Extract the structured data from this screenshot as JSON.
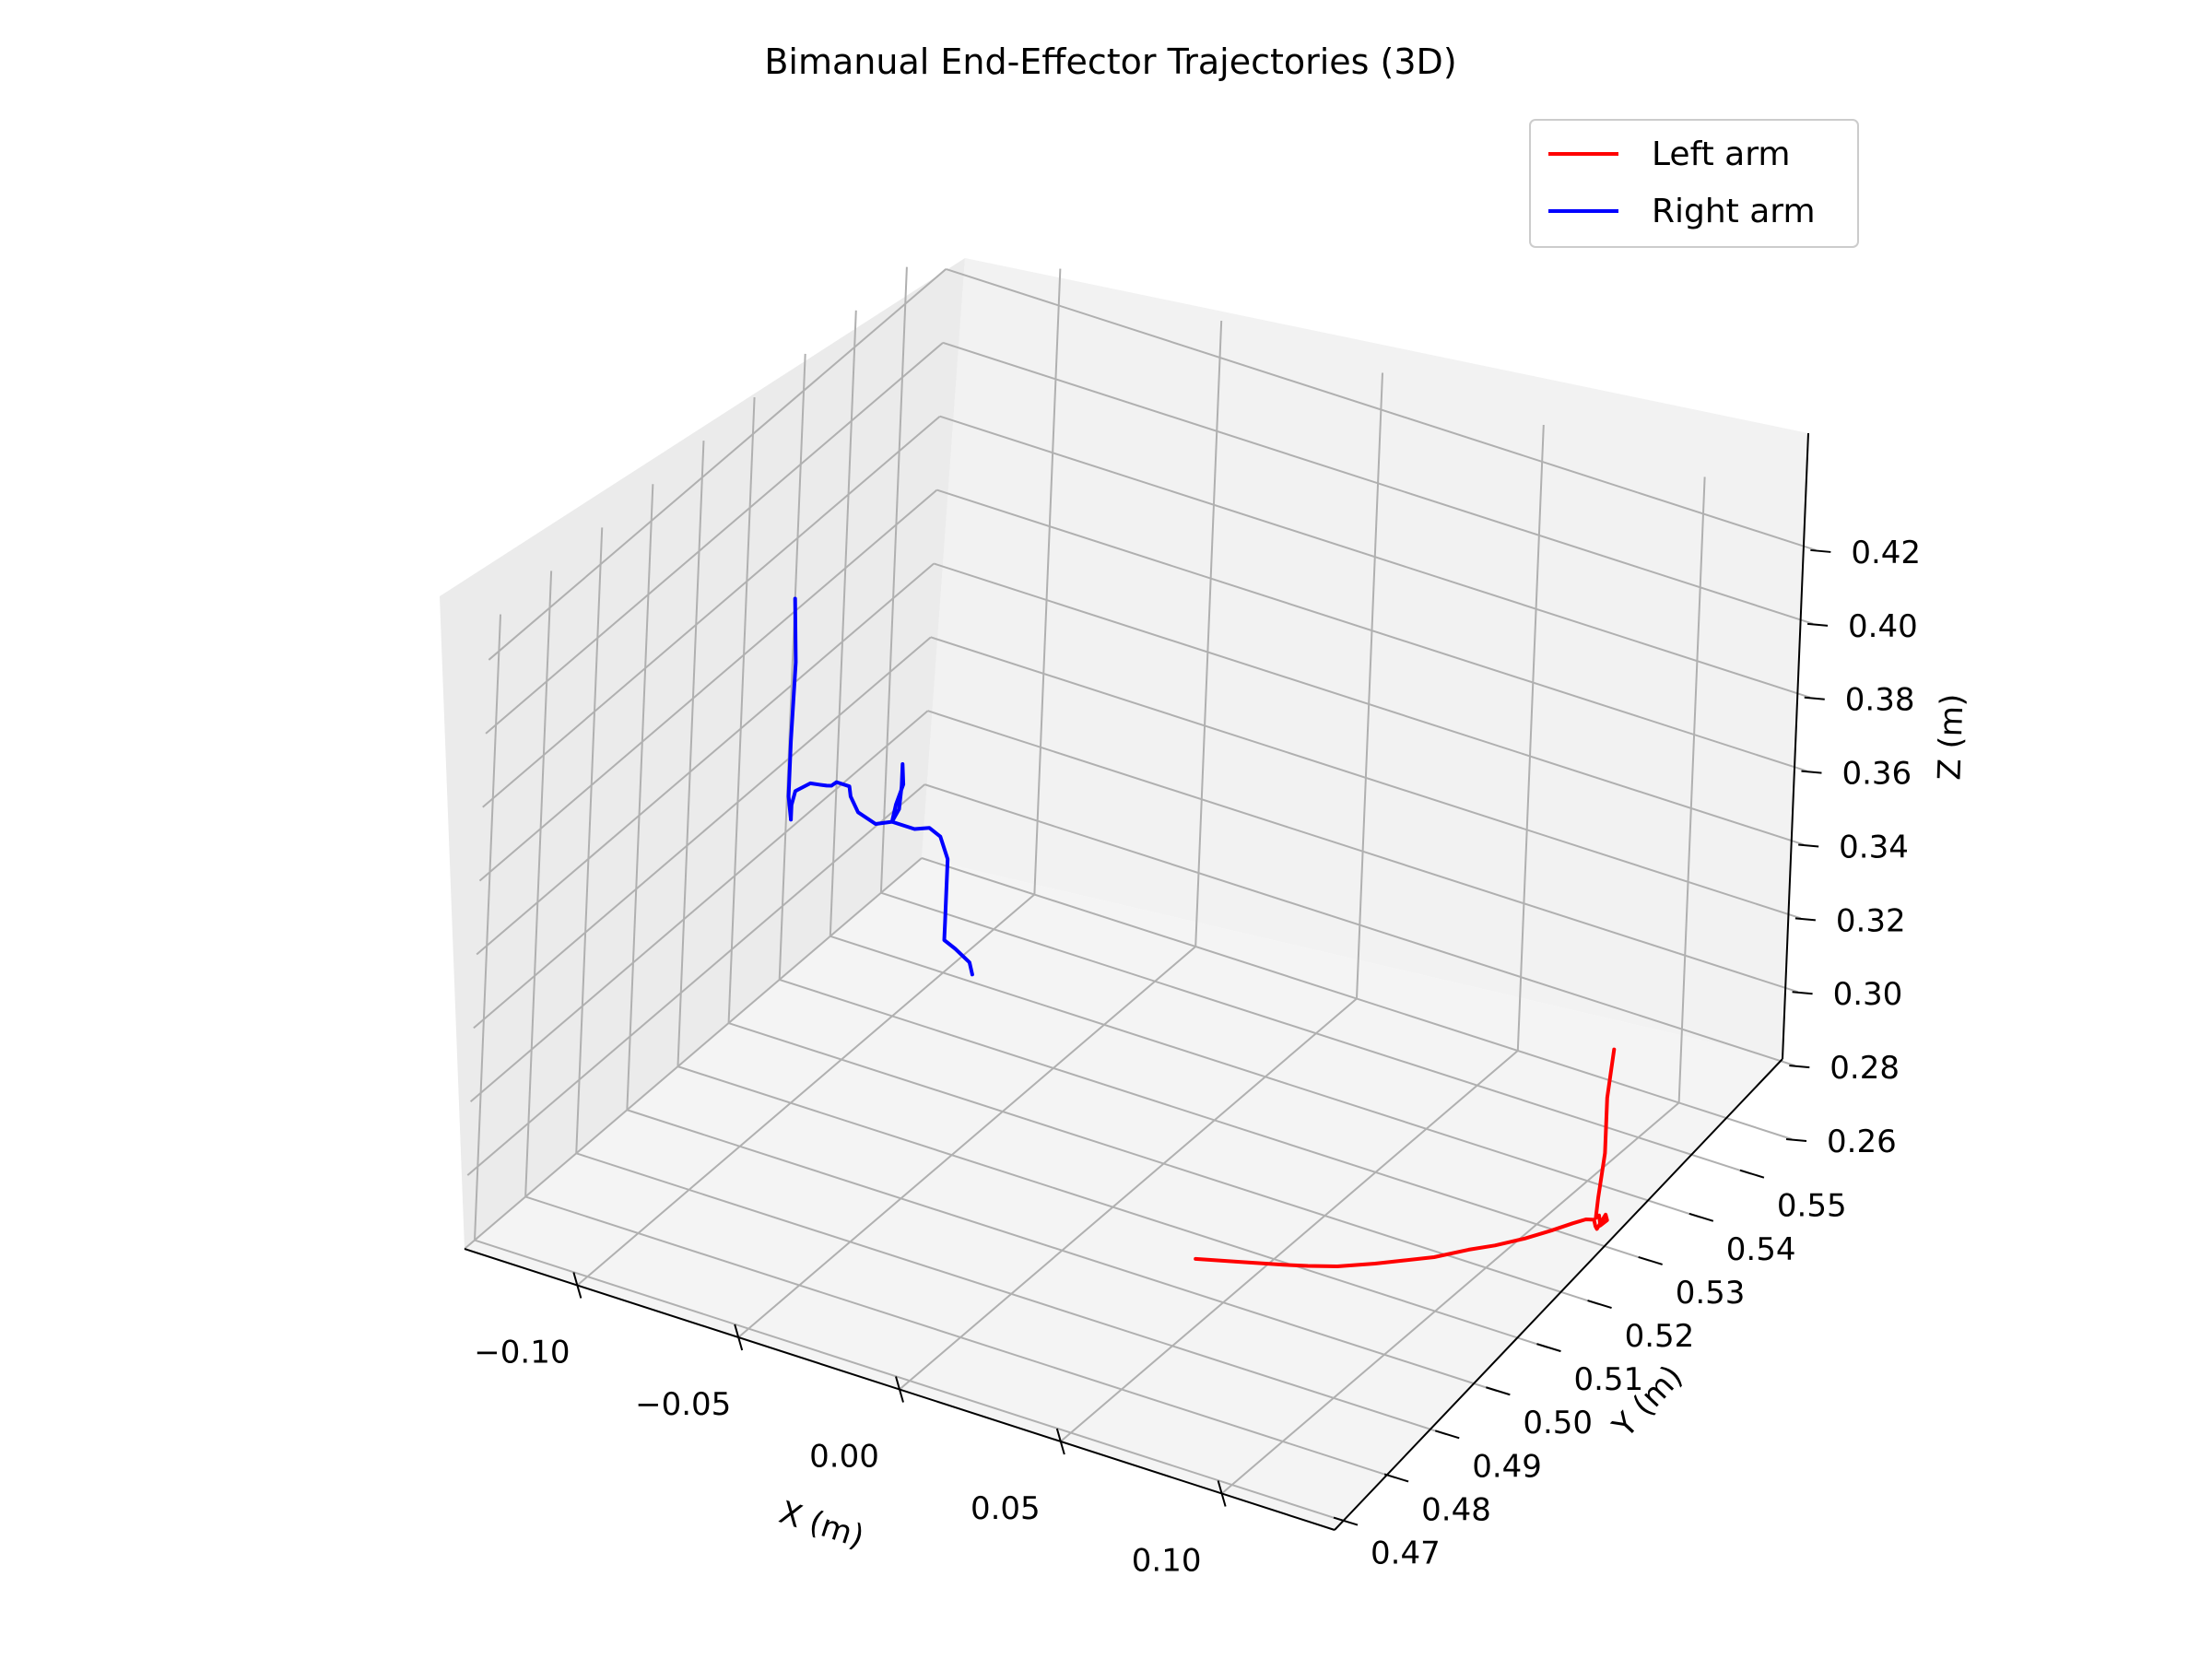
{
  "chart_data": {
    "type": "line",
    "projection": "3d",
    "title": "Bimanual End-Effector Trajectories (3D)",
    "xlabel": "X (m)",
    "ylabel": "Y (m)",
    "zlabel": "Z (m)",
    "xlim": [
      -0.135,
      0.135
    ],
    "ylim": [
      0.468,
      0.558
    ],
    "zlim": [
      0.26,
      0.43
    ],
    "xticks": [
      "−0.10",
      "−0.05",
      "0.00",
      "0.05",
      "0.10"
    ],
    "xtick_values": [
      -0.1,
      -0.05,
      0.0,
      0.05,
      0.1
    ],
    "yticks": [
      "0.47",
      "0.48",
      "0.49",
      "0.50",
      "0.51",
      "0.52",
      "0.53",
      "0.54",
      "0.55"
    ],
    "ytick_values": [
      0.47,
      0.48,
      0.49,
      0.5,
      0.51,
      0.52,
      0.53,
      0.54,
      0.55
    ],
    "zticks": [
      "0.26",
      "0.28",
      "0.30",
      "0.32",
      "0.34",
      "0.36",
      "0.38",
      "0.40",
      "0.42"
    ],
    "ztick_values": [
      0.26,
      0.28,
      0.3,
      0.32,
      0.34,
      0.36,
      0.38,
      0.4,
      0.42
    ],
    "grid": true,
    "legend_position": "top-right",
    "series": [
      {
        "name": "Left arm",
        "color": "#ff0000",
        "points": [
          [
            0.08,
            0.474,
            0.311
          ],
          [
            0.086,
            0.479,
            0.306
          ],
          [
            0.092,
            0.484,
            0.301
          ],
          [
            0.095,
            0.487,
            0.298
          ],
          [
            0.098,
            0.491,
            0.294
          ],
          [
            0.102,
            0.496,
            0.29
          ],
          [
            0.105,
            0.5,
            0.287
          ],
          [
            0.108,
            0.504,
            0.284
          ],
          [
            0.111,
            0.509,
            0.281
          ],
          [
            0.113,
            0.513,
            0.278
          ],
          [
            0.116,
            0.517,
            0.276
          ],
          [
            0.118,
            0.521,
            0.274
          ],
          [
            0.12,
            0.524,
            0.273
          ],
          [
            0.121,
            0.526,
            0.272
          ],
          [
            0.122,
            0.527,
            0.271
          ],
          [
            0.124,
            0.526,
            0.271
          ],
          [
            0.126,
            0.525,
            0.272
          ],
          [
            0.127,
            0.526,
            0.275
          ],
          [
            0.126,
            0.527,
            0.272
          ],
          [
            0.124,
            0.527,
            0.27
          ],
          [
            0.122,
            0.528,
            0.271
          ],
          [
            0.121,
            0.528,
            0.27
          ],
          [
            0.12,
            0.529,
            0.274
          ],
          [
            0.12,
            0.53,
            0.285
          ],
          [
            0.12,
            0.53,
            0.3
          ],
          [
            0.12,
            0.531,
            0.312
          ]
        ]
      },
      {
        "name": "Right arm",
        "color": "#0000ff",
        "points": [
          [
            -0.096,
            0.505,
            0.344
          ],
          [
            -0.096,
            0.505,
            0.348
          ],
          [
            -0.095,
            0.505,
            0.352
          ],
          [
            -0.093,
            0.504,
            0.354
          ],
          [
            -0.089,
            0.504,
            0.357
          ],
          [
            -0.085,
            0.503,
            0.359
          ],
          [
            -0.081,
            0.502,
            0.361
          ],
          [
            -0.078,
            0.501,
            0.363
          ],
          [
            -0.075,
            0.5,
            0.366
          ],
          [
            -0.071,
            0.5,
            0.366
          ],
          [
            -0.069,
            0.499,
            0.365
          ],
          [
            -0.065,
            0.498,
            0.363
          ],
          [
            -0.058,
            0.497,
            0.363
          ],
          [
            -0.053,
            0.497,
            0.365
          ],
          [
            -0.052,
            0.497,
            0.37
          ],
          [
            -0.05,
            0.497,
            0.376
          ],
          [
            -0.049,
            0.496,
            0.383
          ],
          [
            -0.049,
            0.496,
            0.377
          ],
          [
            -0.051,
            0.497,
            0.369
          ],
          [
            -0.053,
            0.497,
            0.365
          ],
          [
            -0.05,
            0.497,
            0.365
          ],
          [
            -0.046,
            0.497,
            0.365
          ],
          [
            -0.043,
            0.498,
            0.365
          ],
          [
            -0.041,
            0.499,
            0.362
          ],
          [
            -0.04,
            0.5,
            0.355
          ],
          [
            -0.04,
            0.5,
            0.346
          ],
          [
            -0.04,
            0.5,
            0.338
          ],
          [
            -0.04,
            0.5,
            0.333
          ],
          [
            -0.038,
            0.501,
            0.33
          ],
          [
            -0.035,
            0.502,
            0.326
          ],
          [
            -0.034,
            0.502,
            0.323
          ]
        ],
        "extra_segments": [
          [
            [
              -0.096,
              0.505,
              0.344
            ],
            [
              -0.097,
              0.505,
              0.35
            ],
            [
              -0.097,
              0.505,
              0.365
            ],
            [
              -0.098,
              0.506,
              0.385
            ],
            [
              -0.099,
              0.506,
              0.402
            ]
          ]
        ]
      }
    ]
  }
}
